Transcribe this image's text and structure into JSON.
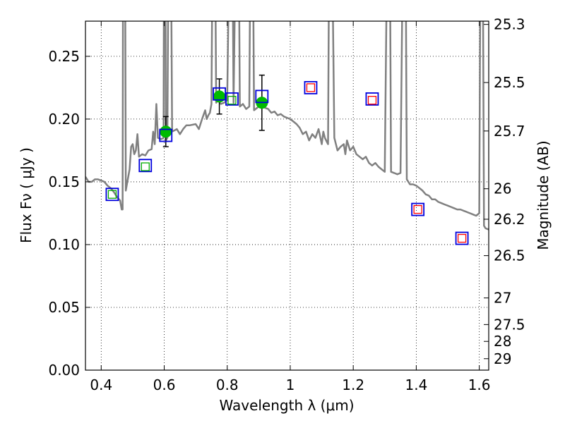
{
  "chart_data": {
    "type": "scatter",
    "xlabel": "Wavelength  λ (μm)",
    "ylabel": "Flux  Fν  ( μJy )",
    "y2label": "Magnitude (AB)",
    "xlim": [
      0.35,
      1.63
    ],
    "ylim": [
      0.0,
      0.278
    ],
    "x_ticks": [
      0.4,
      0.6,
      0.8,
      1.0,
      1.2,
      1.4,
      1.6
    ],
    "x_tick_labels": [
      "0.4",
      "0.6",
      "0.8",
      "1",
      "1.2",
      "1.4",
      "1.6"
    ],
    "y_ticks": [
      0.0,
      0.05,
      0.1,
      0.15,
      0.2,
      0.25
    ],
    "y_tick_labels": [
      "0.00",
      "0.05",
      "0.10",
      "0.15",
      "0.20",
      "0.25"
    ],
    "mag_ticks": [
      {
        "label": "25.3",
        "flux": 0.2754
      },
      {
        "label": "25.5",
        "flux": 0.2291
      },
      {
        "label": "25.7",
        "flux": 0.1905
      },
      {
        "label": "26",
        "flux": 0.1445
      },
      {
        "label": "26.2",
        "flux": 0.1202
      },
      {
        "label": "26.5",
        "flux": 0.0912
      },
      {
        "label": "27",
        "flux": 0.0575
      },
      {
        "label": "27.5",
        "flux": 0.0363
      },
      {
        "label": "28",
        "flux": 0.0229
      },
      {
        "label": "29",
        "flux": 0.0091
      }
    ],
    "grid": true,
    "series": [
      {
        "name": "model_sed",
        "kind": "line",
        "color": "#808080",
        "points": [
          [
            0.35,
            0.154
          ],
          [
            0.36,
            0.15
          ],
          [
            0.37,
            0.15
          ],
          [
            0.38,
            0.152
          ],
          [
            0.39,
            0.152
          ],
          [
            0.4,
            0.151
          ],
          [
            0.41,
            0.15
          ],
          [
            0.42,
            0.147
          ],
          [
            0.43,
            0.145
          ],
          [
            0.44,
            0.142
          ],
          [
            0.45,
            0.138
          ],
          [
            0.46,
            0.135
          ],
          [
            0.465,
            0.128
          ],
          [
            0.468,
            0.128
          ],
          [
            0.47,
            0.4
          ],
          [
            0.475,
            0.4
          ],
          [
            0.478,
            0.143
          ],
          [
            0.49,
            0.16
          ],
          [
            0.495,
            0.178
          ],
          [
            0.5,
            0.18
          ],
          [
            0.505,
            0.172
          ],
          [
            0.51,
            0.175
          ],
          [
            0.515,
            0.188
          ],
          [
            0.52,
            0.17
          ],
          [
            0.53,
            0.172
          ],
          [
            0.54,
            0.171
          ],
          [
            0.55,
            0.175
          ],
          [
            0.56,
            0.176
          ],
          [
            0.565,
            0.19
          ],
          [
            0.57,
            0.18
          ],
          [
            0.575,
            0.212
          ],
          [
            0.58,
            0.185
          ],
          [
            0.59,
            0.184
          ],
          [
            0.598,
            0.185
          ],
          [
            0.6,
            0.4
          ],
          [
            0.603,
            0.4
          ],
          [
            0.605,
            0.183
          ],
          [
            0.61,
            0.185
          ],
          [
            0.615,
            0.4
          ],
          [
            0.62,
            0.4
          ],
          [
            0.625,
            0.19
          ],
          [
            0.64,
            0.192
          ],
          [
            0.65,
            0.188
          ],
          [
            0.66,
            0.192
          ],
          [
            0.67,
            0.195
          ],
          [
            0.68,
            0.195
          ],
          [
            0.7,
            0.196
          ],
          [
            0.71,
            0.192
          ],
          [
            0.72,
            0.2
          ],
          [
            0.73,
            0.207
          ],
          [
            0.735,
            0.2
          ],
          [
            0.74,
            0.203
          ],
          [
            0.745,
            0.205
          ],
          [
            0.75,
            0.212
          ],
          [
            0.755,
            0.4
          ],
          [
            0.76,
            0.4
          ],
          [
            0.765,
            0.213
          ],
          [
            0.77,
            0.215
          ],
          [
            0.78,
            0.212
          ],
          [
            0.79,
            0.213
          ],
          [
            0.8,
            0.215
          ],
          [
            0.81,
            0.4
          ],
          [
            0.815,
            0.4
          ],
          [
            0.82,
            0.213
          ],
          [
            0.83,
            0.4
          ],
          [
            0.835,
            0.4
          ],
          [
            0.84,
            0.21
          ],
          [
            0.85,
            0.212
          ],
          [
            0.86,
            0.208
          ],
          [
            0.87,
            0.21
          ],
          [
            0.875,
            0.4
          ],
          [
            0.88,
            0.4
          ],
          [
            0.885,
            0.207
          ],
          [
            0.9,
            0.21
          ],
          [
            0.91,
            0.212
          ],
          [
            0.92,
            0.209
          ],
          [
            0.93,
            0.208
          ],
          [
            0.94,
            0.205
          ],
          [
            0.95,
            0.206
          ],
          [
            0.96,
            0.203
          ],
          [
            0.97,
            0.204
          ],
          [
            0.98,
            0.202
          ],
          [
            0.99,
            0.201
          ],
          [
            1.0,
            0.2
          ],
          [
            1.01,
            0.198
          ],
          [
            1.02,
            0.196
          ],
          [
            1.03,
            0.193
          ],
          [
            1.04,
            0.188
          ],
          [
            1.05,
            0.19
          ],
          [
            1.06,
            0.183
          ],
          [
            1.07,
            0.188
          ],
          [
            1.08,
            0.185
          ],
          [
            1.09,
            0.192
          ],
          [
            1.1,
            0.18
          ],
          [
            1.105,
            0.19
          ],
          [
            1.11,
            0.185
          ],
          [
            1.12,
            0.18
          ],
          [
            1.125,
            0.4
          ],
          [
            1.13,
            0.4
          ],
          [
            1.14,
            0.185
          ],
          [
            1.15,
            0.175
          ],
          [
            1.16,
            0.178
          ],
          [
            1.17,
            0.18
          ],
          [
            1.175,
            0.172
          ],
          [
            1.18,
            0.183
          ],
          [
            1.19,
            0.175
          ],
          [
            1.2,
            0.178
          ],
          [
            1.21,
            0.172
          ],
          [
            1.22,
            0.17
          ],
          [
            1.23,
            0.168
          ],
          [
            1.24,
            0.17
          ],
          [
            1.25,
            0.165
          ],
          [
            1.26,
            0.163
          ],
          [
            1.27,
            0.165
          ],
          [
            1.28,
            0.162
          ],
          [
            1.29,
            0.16
          ],
          [
            1.3,
            0.158
          ],
          [
            1.31,
            0.4
          ],
          [
            1.315,
            0.4
          ],
          [
            1.32,
            0.158
          ],
          [
            1.33,
            0.157
          ],
          [
            1.34,
            0.156
          ],
          [
            1.35,
            0.157
          ],
          [
            1.36,
            0.4
          ],
          [
            1.365,
            0.4
          ],
          [
            1.37,
            0.152
          ],
          [
            1.38,
            0.148
          ],
          [
            1.39,
            0.148
          ],
          [
            1.4,
            0.147
          ],
          [
            1.41,
            0.145
          ],
          [
            1.42,
            0.143
          ],
          [
            1.43,
            0.14
          ],
          [
            1.44,
            0.139
          ],
          [
            1.45,
            0.136
          ],
          [
            1.46,
            0.136
          ],
          [
            1.47,
            0.134
          ],
          [
            1.48,
            0.133
          ],
          [
            1.49,
            0.132
          ],
          [
            1.5,
            0.131
          ],
          [
            1.51,
            0.13
          ],
          [
            1.52,
            0.129
          ],
          [
            1.53,
            0.128
          ],
          [
            1.54,
            0.128
          ],
          [
            1.55,
            0.127
          ],
          [
            1.56,
            0.126
          ],
          [
            1.57,
            0.125
          ],
          [
            1.58,
            0.124
          ],
          [
            1.59,
            0.123
          ],
          [
            1.6,
            0.125
          ],
          [
            1.605,
            0.4
          ],
          [
            1.61,
            0.4
          ],
          [
            1.615,
            0.115
          ],
          [
            1.62,
            0.113
          ],
          [
            1.63,
            0.112
          ]
        ]
      },
      {
        "name": "observed_flux",
        "kind": "scatter",
        "marker": "circle",
        "color": "#00bb00",
        "points": [
          {
            "x": 0.605,
            "y": 0.19,
            "err": 0.012
          },
          {
            "x": 0.775,
            "y": 0.218,
            "err": 0.014
          },
          {
            "x": 0.91,
            "y": 0.213,
            "err": 0.022
          }
        ]
      },
      {
        "name": "model_bandpass_flux",
        "kind": "scatter",
        "marker": "square-open",
        "color": "#0000dd",
        "points": [
          [
            0.435,
            0.14
          ],
          [
            0.54,
            0.163
          ],
          [
            0.605,
            0.187
          ],
          [
            0.775,
            0.22
          ],
          [
            0.815,
            0.216
          ],
          [
            0.91,
            0.218
          ],
          [
            1.065,
            0.225
          ],
          [
            1.26,
            0.216
          ],
          [
            1.405,
            0.128
          ],
          [
            1.545,
            0.105
          ]
        ]
      },
      {
        "name": "green_inner_squares",
        "kind": "scatter",
        "marker": "square-open",
        "color": "#00aa00",
        "points": [
          [
            0.435,
            0.14
          ],
          [
            0.54,
            0.162
          ],
          [
            0.815,
            0.215
          ]
        ]
      },
      {
        "name": "red_inner_squares",
        "kind": "scatter",
        "marker": "square-open",
        "color": "#ff0000",
        "points": [
          [
            1.065,
            0.225
          ],
          [
            1.26,
            0.215
          ],
          [
            1.405,
            0.128
          ],
          [
            1.545,
            0.105
          ]
        ]
      }
    ]
  }
}
